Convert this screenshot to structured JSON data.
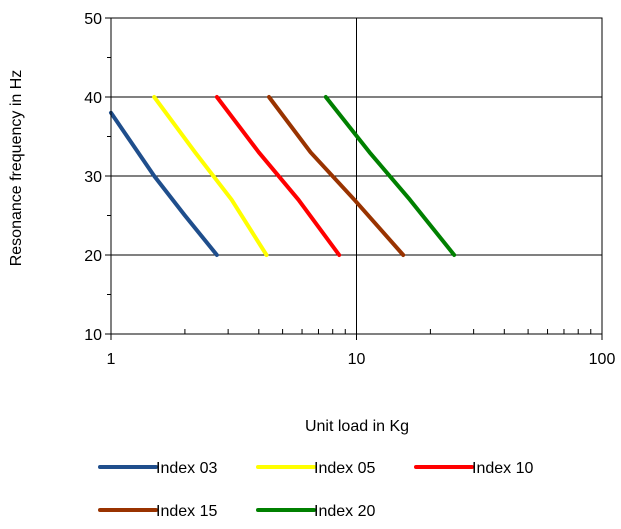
{
  "chart_data": {
    "type": "line",
    "title": "",
    "xlabel": "Unit load in Kg",
    "ylabel": "Resonance frequency in Hz",
    "x_scale": "log",
    "xlim": [
      1,
      100
    ],
    "ylim": [
      10,
      50
    ],
    "x_ticks": [
      1,
      10,
      100
    ],
    "x_tick_labels": [
      "1",
      "10",
      "100"
    ],
    "y_ticks": [
      10,
      20,
      30,
      40,
      50
    ],
    "y_tick_labels": [
      "10",
      "20",
      "30",
      "40",
      "50"
    ],
    "grid": "major",
    "legend_position": "bottom",
    "series": [
      {
        "name": "Index 03",
        "color": "#1f4e8c",
        "x": [
          1.0,
          1.5,
          2.0,
          2.7
        ],
        "y": [
          38,
          30,
          25,
          20
        ]
      },
      {
        "name": "Index 05",
        "color": "#ffff00",
        "x": [
          1.5,
          2.2,
          3.1,
          4.3
        ],
        "y": [
          40,
          33,
          27,
          20
        ]
      },
      {
        "name": "Index 10",
        "color": "#ff0000",
        "x": [
          2.7,
          4.0,
          5.8,
          8.5
        ],
        "y": [
          40,
          33,
          27,
          20
        ]
      },
      {
        "name": "Index 15",
        "color": "#993300",
        "x": [
          4.4,
          6.5,
          9.8,
          15.5
        ],
        "y": [
          40,
          33,
          27,
          20
        ]
      },
      {
        "name": "Index 20",
        "color": "#008000",
        "x": [
          7.5,
          11.3,
          16.5,
          25.0
        ],
        "y": [
          40,
          33,
          27,
          20
        ]
      }
    ]
  }
}
